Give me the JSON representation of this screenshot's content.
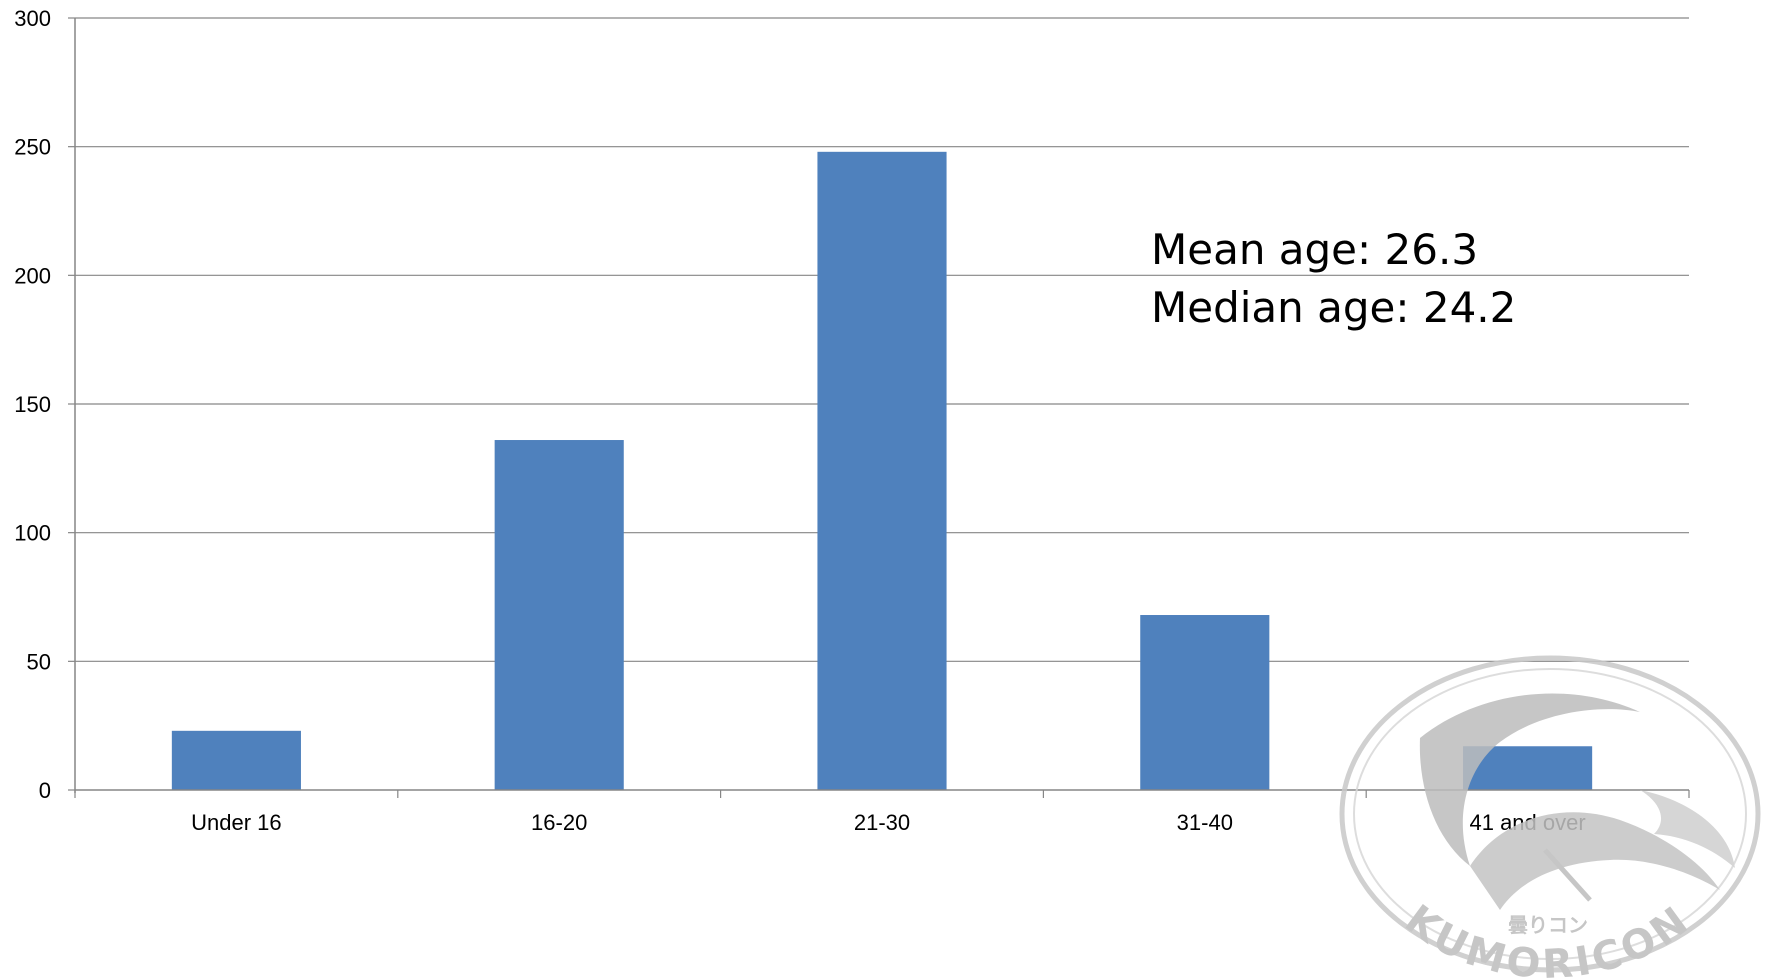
{
  "chart_data": {
    "type": "bar",
    "categories": [
      "Under 16",
      "16-20",
      "21-30",
      "31-40",
      "41 and over"
    ],
    "values": [
      23,
      136,
      248,
      68,
      17
    ],
    "ylim": [
      0,
      300
    ],
    "yticks": [
      0,
      50,
      100,
      150,
      200,
      250,
      300
    ],
    "grid": true,
    "legend": "none",
    "bar_color": "#4f81bd",
    "annotations": [
      "Mean age: 26.3",
      "Median age: 24.2"
    ]
  },
  "watermark": {
    "brand": "KUMORICON",
    "subtitle": "曇りコン",
    "color": "#bdbdbd"
  }
}
